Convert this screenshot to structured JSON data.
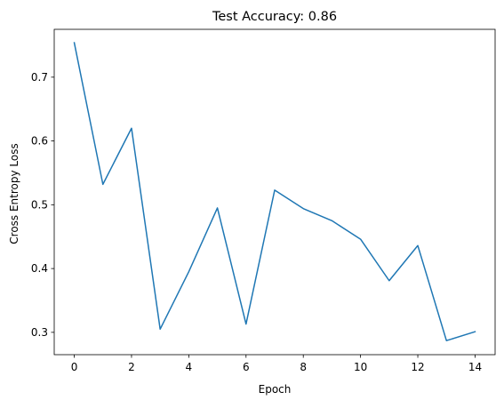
{
  "chart_data": {
    "type": "line",
    "title": "Test Accuracy: 0.86",
    "xlabel": "Epoch",
    "ylabel": "Cross Entropy Loss",
    "xlim": [
      -0.7,
      14.7
    ],
    "ylim": [
      0.265,
      0.775
    ],
    "xticks": [
      0,
      2,
      4,
      6,
      8,
      10,
      12,
      14
    ],
    "xtick_labels": [
      "0",
      "2",
      "4",
      "6",
      "8",
      "10",
      "12",
      "14"
    ],
    "yticks": [
      0.3,
      0.4,
      0.5,
      0.6,
      0.7
    ],
    "ytick_labels": [
      "0.3",
      "0.4",
      "0.5",
      "0.6",
      "0.7"
    ],
    "grid": false,
    "legend": null,
    "series": [
      {
        "color": "#1f77b4",
        "x": [
          0,
          1,
          2,
          3,
          4,
          5,
          6,
          7,
          8,
          9,
          10,
          11,
          12,
          13,
          14
        ],
        "y": [
          0.754,
          0.532,
          0.62,
          0.305,
          0.395,
          0.495,
          0.313,
          0.523,
          0.494,
          0.475,
          0.446,
          0.381,
          0.436,
          0.287,
          0.301
        ]
      }
    ]
  }
}
